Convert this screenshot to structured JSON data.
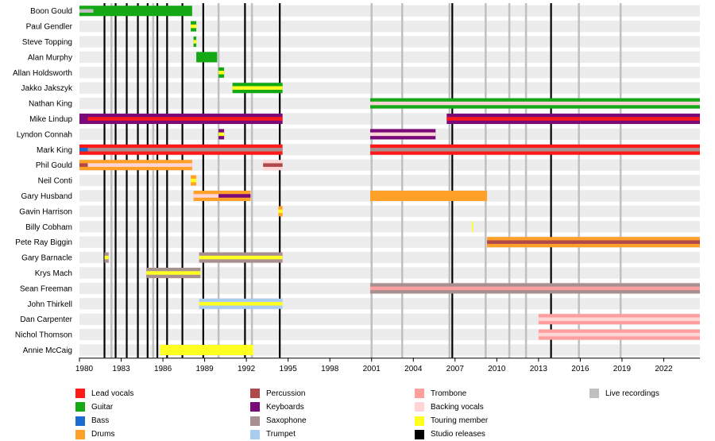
{
  "chart_data": {
    "type": "timeline",
    "axis": {
      "min": 1980,
      "max": 2024.6,
      "ticks": [
        1980,
        1983,
        1986,
        1989,
        1992,
        1995,
        1998,
        2001,
        2004,
        2007,
        2010,
        2013,
        2016,
        2019,
        2022
      ]
    },
    "members": [
      "Boon Gould",
      "Paul Gendler",
      "Steve Topping",
      "Alan Murphy",
      "Allan Holdsworth",
      "Jakko Jakszyk",
      "Nathan King",
      "Mike Lindup",
      "Lyndon Connah",
      "Mark King",
      "Phil Gould",
      "Neil Conti",
      "Gary Husband",
      "Gavin Harrison",
      "Billy Cobham",
      "Pete Ray Biggin",
      "Gary Barnacle",
      "Krys Mach",
      "Sean Freeman",
      "John Thirkell",
      "Dan Carpenter",
      "Nichol Thomson",
      "Annie McCaig"
    ],
    "roles": [
      {
        "key": "lead_vocals",
        "label": "Lead vocals",
        "color": "#ff1a1a"
      },
      {
        "key": "guitar",
        "label": "Guitar",
        "color": "#15a815"
      },
      {
        "key": "bass",
        "label": "Bass",
        "color": "#1a6cd1"
      },
      {
        "key": "drums",
        "label": "Drums",
        "color": "#ffa028"
      },
      {
        "key": "percussion",
        "label": "Percussion",
        "color": "#b04a4a"
      },
      {
        "key": "keyboards",
        "label": "Keyboards",
        "color": "#7a0a7a"
      },
      {
        "key": "saxophone",
        "label": "Saxophone",
        "color": "#a89090"
      },
      {
        "key": "trumpet",
        "label": "Trumpet",
        "color": "#aaccf0"
      },
      {
        "key": "trombone",
        "label": "Trombone",
        "color": "#ff9e9e"
      },
      {
        "key": "backing_vocals",
        "label": "Backing vocals",
        "color": "#ffd5d5"
      },
      {
        "key": "touring_member",
        "label": "Touring member",
        "color": "#ffff22"
      },
      {
        "key": "studio_releases",
        "label": "Studio releases",
        "color": "#000000"
      },
      {
        "key": "live_recordings",
        "label": "Live recordings",
        "color": "#c0c0c0"
      }
    ],
    "studio_releases": [
      1981.8,
      1982.6,
      1983.4,
      1984.2,
      1984.9,
      1985.6,
      1986.3,
      1987.4,
      1988.9,
      1991.9,
      1994.4,
      2006.8,
      2013.9
    ],
    "live_recordings": [
      1982.3,
      1985.3,
      1990.0,
      1992.4,
      2001.0,
      2003.2,
      2006.6,
      2009.2,
      2010.9,
      2012.1,
      2015.9,
      2018.9
    ],
    "bars": [
      {
        "member": 0,
        "start": 1980.0,
        "end": 1988.1,
        "role": "guitar"
      },
      {
        "member": 0,
        "start": 1980.0,
        "end": 1981.0,
        "role": "live_recordings",
        "layer": "inner"
      },
      {
        "member": 1,
        "start": 1988.0,
        "end": 1988.4,
        "role": "guitar"
      },
      {
        "member": 1,
        "start": 1988.0,
        "end": 1988.4,
        "role": "touring_member",
        "layer": "inner"
      },
      {
        "member": 2,
        "start": 1988.2,
        "end": 1988.4,
        "role": "guitar"
      },
      {
        "member": 2,
        "start": 1988.2,
        "end": 1988.4,
        "role": "touring_member",
        "layer": "inner"
      },
      {
        "member": 3,
        "start": 1988.4,
        "end": 1989.9,
        "role": "guitar"
      },
      {
        "member": 4,
        "start": 1990.0,
        "end": 1990.4,
        "role": "guitar"
      },
      {
        "member": 4,
        "start": 1990.0,
        "end": 1990.4,
        "role": "touring_member",
        "layer": "inner"
      },
      {
        "member": 5,
        "start": 1991.0,
        "end": 1994.6,
        "role": "guitar"
      },
      {
        "member": 5,
        "start": 1991.0,
        "end": 1994.6,
        "role": "touring_member",
        "layer": "inner"
      },
      {
        "member": 6,
        "start": 2000.9,
        "end": 2024.6,
        "role": "guitar"
      },
      {
        "member": 6,
        "start": 2000.9,
        "end": 2024.6,
        "role": "backing_vocals",
        "layer": "inner"
      },
      {
        "member": 7,
        "start": 1980.0,
        "end": 1994.6,
        "role": "keyboards"
      },
      {
        "member": 7,
        "start": 1980.6,
        "end": 1994.6,
        "role": "lead_vocals",
        "layer": "inner"
      },
      {
        "member": 7,
        "start": 2006.4,
        "end": 2024.6,
        "role": "keyboards"
      },
      {
        "member": 7,
        "start": 2006.4,
        "end": 2024.6,
        "role": "lead_vocals",
        "layer": "inner"
      },
      {
        "member": 8,
        "start": 1990.0,
        "end": 1990.4,
        "role": "keyboards"
      },
      {
        "member": 8,
        "start": 1990.0,
        "end": 1990.4,
        "role": "touring_member",
        "layer": "inner"
      },
      {
        "member": 8,
        "start": 2000.9,
        "end": 2005.6,
        "role": "keyboards"
      },
      {
        "member": 8,
        "start": 2000.9,
        "end": 2005.6,
        "role": "backing_vocals",
        "layer": "inner"
      },
      {
        "member": 9,
        "start": 1980.0,
        "end": 1994.6,
        "role": "lead_vocals"
      },
      {
        "member": 9,
        "start": 1980.6,
        "end": 1994.6,
        "role": "saxophone",
        "layer": "inner"
      },
      {
        "member": 9,
        "start": 1980.0,
        "end": 1980.6,
        "role": "bass",
        "layer": "inner"
      },
      {
        "member": 9,
        "start": 2000.9,
        "end": 2024.6,
        "role": "lead_vocals"
      },
      {
        "member": 9,
        "start": 2000.9,
        "end": 2024.6,
        "role": "saxophone",
        "layer": "inner"
      },
      {
        "member": 10,
        "start": 1980.0,
        "end": 1988.1,
        "role": "drums"
      },
      {
        "member": 10,
        "start": 1980.0,
        "end": 1980.6,
        "role": "percussion",
        "layer": "inner"
      },
      {
        "member": 10,
        "start": 1980.6,
        "end": 1988.1,
        "role": "backing_vocals",
        "layer": "inner"
      },
      {
        "member": 10,
        "start": 1993.2,
        "end": 1994.6,
        "role": "backing_vocals"
      },
      {
        "member": 10,
        "start": 1993.2,
        "end": 1994.6,
        "role": "percussion",
        "layer": "inner"
      },
      {
        "member": 11,
        "start": 1988.0,
        "end": 1988.4,
        "role": "drums"
      },
      {
        "member": 11,
        "start": 1988.0,
        "end": 1988.4,
        "role": "touring_member",
        "layer": "inner"
      },
      {
        "member": 12,
        "start": 1988.2,
        "end": 1992.3,
        "role": "drums"
      },
      {
        "member": 12,
        "start": 1988.2,
        "end": 1990.0,
        "role": "backing_vocals",
        "layer": "inner"
      },
      {
        "member": 12,
        "start": 1990.0,
        "end": 1992.3,
        "role": "keyboards",
        "layer": "inner"
      },
      {
        "member": 12,
        "start": 2000.9,
        "end": 2009.3,
        "role": "drums"
      },
      {
        "member": 13,
        "start": 1994.3,
        "end": 1994.6,
        "role": "drums"
      },
      {
        "member": 13,
        "start": 1994.3,
        "end": 1994.6,
        "role": "touring_member",
        "layer": "inner"
      },
      {
        "member": 14,
        "start": 2008.2,
        "end": 2008.3,
        "role": "touring_member"
      },
      {
        "member": 15,
        "start": 2009.3,
        "end": 2024.6,
        "role": "drums"
      },
      {
        "member": 15,
        "start": 2009.3,
        "end": 2024.6,
        "role": "percussion",
        "layer": "inner"
      },
      {
        "member": 16,
        "start": 1981.8,
        "end": 1982.1,
        "role": "saxophone"
      },
      {
        "member": 16,
        "start": 1981.8,
        "end": 1982.1,
        "role": "touring_member",
        "layer": "inner"
      },
      {
        "member": 16,
        "start": 1988.6,
        "end": 1994.6,
        "role": "saxophone"
      },
      {
        "member": 16,
        "start": 1988.6,
        "end": 1994.6,
        "role": "touring_member",
        "layer": "inner"
      },
      {
        "member": 17,
        "start": 1984.8,
        "end": 1988.7,
        "role": "saxophone"
      },
      {
        "member": 17,
        "start": 1984.8,
        "end": 1988.7,
        "role": "touring_member",
        "layer": "inner"
      },
      {
        "member": 18,
        "start": 2000.9,
        "end": 2024.6,
        "role": "saxophone"
      },
      {
        "member": 18,
        "start": 2000.9,
        "end": 2024.6,
        "role": "trombone",
        "layer": "inner"
      },
      {
        "member": 19,
        "start": 1988.6,
        "end": 1994.6,
        "role": "trumpet"
      },
      {
        "member": 19,
        "start": 1988.6,
        "end": 1994.6,
        "role": "touring_member",
        "layer": "inner"
      },
      {
        "member": 20,
        "start": 2013.0,
        "end": 2024.6,
        "role": "trombone"
      },
      {
        "member": 20,
        "start": 2013.0,
        "end": 2024.6,
        "role": "backing_vocals",
        "layer": "inner"
      },
      {
        "member": 21,
        "start": 2013.0,
        "end": 2024.6,
        "role": "trombone"
      },
      {
        "member": 21,
        "start": 2013.0,
        "end": 2024.6,
        "role": "backing_vocals",
        "layer": "inner"
      },
      {
        "member": 22,
        "start": 1985.8,
        "end": 1992.5,
        "role": "touring_member"
      }
    ]
  }
}
